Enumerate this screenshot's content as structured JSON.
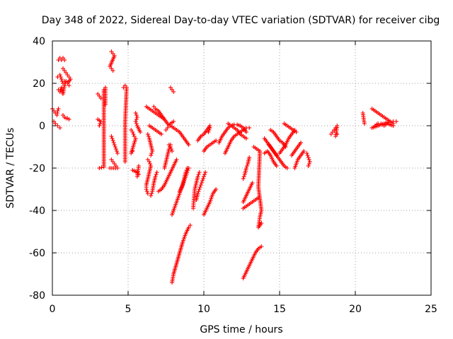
{
  "chart_data": {
    "type": "scatter",
    "title": "Day 348 of 2022, Sidereal Day-to-day VTEC variation (SDTVAR) for receiver cibg",
    "xlabel": "GPS time / hours",
    "ylabel": "SDTVAR / TECUs",
    "xlim": [
      0,
      25
    ],
    "ylim": [
      -80,
      40
    ],
    "xticks": [
      "0",
      "5",
      "10",
      "15",
      "20",
      "25"
    ],
    "yticks": [
      "-80",
      "-60",
      "-40",
      "-20",
      "0",
      "20",
      "40"
    ],
    "grid": true,
    "marker": "+",
    "color": "#ff0000",
    "tracks": [
      [
        [
          0.0,
          8
        ],
        [
          0.1,
          7
        ],
        [
          0.2,
          6
        ],
        [
          0.3,
          5
        ],
        [
          0.35,
          7
        ],
        [
          0.4,
          8
        ]
      ],
      [
        [
          0.1,
          2
        ],
        [
          0.2,
          1
        ],
        [
          0.35,
          0
        ],
        [
          0.5,
          -1
        ]
      ],
      [
        [
          0.4,
          31
        ],
        [
          0.5,
          32
        ],
        [
          0.6,
          31
        ],
        [
          0.7,
          32
        ],
        [
          0.8,
          31
        ]
      ],
      [
        [
          0.35,
          23
        ],
        [
          0.5,
          24
        ],
        [
          0.6,
          22
        ],
        [
          0.7,
          20
        ],
        [
          0.8,
          21
        ]
      ],
      [
        [
          0.4,
          17
        ],
        [
          0.5,
          16
        ],
        [
          0.6,
          18
        ],
        [
          0.7,
          15
        ],
        [
          0.8,
          19
        ],
        [
          0.9,
          21
        ]
      ],
      [
        [
          0.7,
          27
        ],
        [
          0.8,
          26
        ],
        [
          0.9,
          25
        ],
        [
          1.0,
          24
        ],
        [
          1.1,
          23
        ],
        [
          1.2,
          22
        ],
        [
          1.0,
          20
        ],
        [
          1.1,
          19
        ]
      ],
      [
        [
          0.7,
          5
        ],
        [
          0.8,
          4
        ],
        [
          0.9,
          3.5
        ],
        [
          1.0,
          3.5
        ],
        [
          1.1,
          3
        ]
      ],
      [
        [
          3.0,
          15
        ],
        [
          3.1,
          14
        ],
        [
          3.2,
          13
        ]
      ],
      [
        [
          3.0,
          3
        ],
        [
          3.1,
          2.5
        ],
        [
          3.2,
          2
        ],
        [
          3.1,
          0
        ]
      ],
      [
        [
          3.1,
          -20
        ],
        [
          3.4,
          -19.5
        ],
        [
          3.4,
          17
        ],
        [
          3.5,
          18
        ],
        [
          3.5,
          10
        ]
      ],
      [
        [
          3.9,
          35
        ],
        [
          4.0,
          34
        ],
        [
          4.1,
          33
        ],
        [
          3.8,
          28
        ],
        [
          3.9,
          27
        ],
        [
          4.0,
          26
        ]
      ],
      [
        [
          3.9,
          -5
        ],
        [
          4.0,
          -7
        ],
        [
          4.1,
          -9
        ],
        [
          4.2,
          -11
        ],
        [
          4.3,
          -13
        ]
      ],
      [
        [
          3.9,
          -16
        ],
        [
          4.0,
          -17
        ],
        [
          4.1,
          -18
        ],
        [
          4.2,
          -19
        ],
        [
          4.3,
          -20
        ],
        [
          3.8,
          -20
        ]
      ],
      [
        [
          4.7,
          18
        ],
        [
          4.8,
          19
        ],
        [
          4.9,
          18
        ],
        [
          4.8,
          1
        ],
        [
          4.8,
          -5
        ],
        [
          4.8,
          -17
        ]
      ],
      [
        [
          5.2,
          -2
        ],
        [
          5.3,
          -3
        ],
        [
          5.4,
          -5
        ],
        [
          5.5,
          -6
        ],
        [
          5.2,
          -13
        ],
        [
          5.3,
          -12
        ]
      ],
      [
        [
          5.3,
          -21
        ],
        [
          5.6,
          -22
        ],
        [
          5.7,
          -23
        ],
        [
          5.6,
          -24
        ],
        [
          5.7,
          -19
        ]
      ],
      [
        [
          5.5,
          6
        ],
        [
          5.6,
          4
        ],
        [
          5.5,
          2
        ],
        [
          5.6,
          0
        ],
        [
          5.8,
          -3
        ]
      ],
      [
        [
          6.2,
          9
        ],
        [
          6.4,
          8
        ],
        [
          6.6,
          7
        ],
        [
          6.8,
          6
        ],
        [
          7.0,
          5
        ],
        [
          7.2,
          4
        ],
        [
          7.4,
          3
        ]
      ],
      [
        [
          6.4,
          0
        ],
        [
          6.6,
          -1
        ],
        [
          6.8,
          -2
        ],
        [
          7.0,
          -3
        ],
        [
          7.2,
          -4
        ]
      ],
      [
        [
          6.3,
          -4
        ],
        [
          6.4,
          -6
        ],
        [
          6.5,
          -9
        ],
        [
          6.6,
          -12
        ],
        [
          6.5,
          -14
        ]
      ],
      [
        [
          6.3,
          -16
        ],
        [
          6.4,
          -17
        ],
        [
          6.5,
          -19
        ],
        [
          6.4,
          -22
        ],
        [
          6.3,
          -25
        ],
        [
          6.2,
          -28
        ],
        [
          6.2,
          -30
        ],
        [
          6.3,
          -32
        ]
      ],
      [
        [
          6.9,
          -22
        ],
        [
          6.8,
          -24
        ],
        [
          6.7,
          -27
        ],
        [
          6.6,
          -31
        ],
        [
          6.5,
          -33
        ]
      ],
      [
        [
          6.7,
          9
        ],
        [
          6.8,
          8
        ],
        [
          7.0,
          7
        ],
        [
          7.2,
          5
        ],
        [
          7.4,
          3
        ],
        [
          7.6,
          1
        ],
        [
          7.8,
          0
        ],
        [
          8.0,
          -1
        ],
        [
          8.2,
          -2
        ],
        [
          8.4,
          -3
        ],
        [
          8.6,
          -5
        ],
        [
          8.8,
          -7
        ],
        [
          9.0,
          -9
        ]
      ],
      [
        [
          7.8,
          18
        ],
        [
          7.9,
          17
        ],
        [
          8.0,
          16
        ]
      ],
      [
        [
          7.5,
          -2
        ],
        [
          7.6,
          -1
        ],
        [
          7.7,
          0
        ],
        [
          7.8,
          1
        ],
        [
          8.0,
          2
        ]
      ],
      [
        [
          7.7,
          -9
        ],
        [
          7.8,
          -10
        ],
        [
          7.9,
          -12
        ]
      ],
      [
        [
          7.4,
          -20
        ],
        [
          7.5,
          -17
        ],
        [
          7.6,
          -14
        ],
        [
          7.7,
          -11
        ],
        [
          7.8,
          -9
        ]
      ],
      [
        [
          7.0,
          -31
        ],
        [
          7.2,
          -30
        ],
        [
          7.4,
          -28
        ],
        [
          7.6,
          -25
        ],
        [
          7.8,
          -22
        ],
        [
          8.0,
          -19
        ],
        [
          8.2,
          -16
        ]
      ],
      [
        [
          7.9,
          -42
        ],
        [
          8.1,
          -38
        ],
        [
          8.3,
          -34
        ],
        [
          8.5,
          -30
        ],
        [
          8.7,
          -26
        ],
        [
          8.9,
          -22
        ],
        [
          9.0,
          -20
        ]
      ],
      [
        [
          7.9,
          -74
        ],
        [
          8.0,
          -70
        ],
        [
          8.2,
          -65
        ],
        [
          8.4,
          -60
        ],
        [
          8.6,
          -55
        ],
        [
          8.8,
          -51
        ],
        [
          9.0,
          -48
        ],
        [
          9.1,
          -47
        ]
      ],
      [
        [
          8.4,
          -31
        ],
        [
          8.6,
          -28
        ],
        [
          8.7,
          -25
        ],
        [
          8.8,
          -22
        ],
        [
          8.9,
          -20
        ]
      ],
      [
        [
          9.3,
          -39
        ],
        [
          9.35,
          -34
        ],
        [
          9.4,
          -30
        ],
        [
          9.5,
          -27
        ],
        [
          9.6,
          -24
        ],
        [
          9.7,
          -22
        ]
      ],
      [
        [
          9.5,
          -35
        ],
        [
          9.6,
          -32
        ],
        [
          9.7,
          -30
        ],
        [
          9.8,
          -28
        ],
        [
          9.9,
          -26
        ],
        [
          10.0,
          -24
        ],
        [
          10.1,
          -22
        ]
      ],
      [
        [
          10.0,
          -42
        ],
        [
          10.2,
          -39
        ],
        [
          10.4,
          -36
        ],
        [
          10.6,
          -32
        ],
        [
          10.8,
          -30
        ]
      ],
      [
        [
          9.6,
          -7
        ],
        [
          9.8,
          -5
        ],
        [
          10.0,
          -4
        ],
        [
          10.2,
          -2
        ],
        [
          10.4,
          0
        ]
      ],
      [
        [
          10.0,
          -12
        ],
        [
          10.2,
          -10
        ],
        [
          10.4,
          -9
        ],
        [
          10.6,
          -8
        ],
        [
          10.8,
          -7
        ]
      ],
      [
        [
          10.3,
          -3
        ],
        [
          10.4,
          -1
        ]
      ],
      [
        [
          11.0,
          -8
        ],
        [
          11.2,
          -5
        ],
        [
          11.4,
          -3
        ],
        [
          11.6,
          -1
        ],
        [
          11.8,
          0
        ],
        [
          12.0,
          0.5
        ],
        [
          12.2,
          0.5
        ],
        [
          12.4,
          0
        ],
        [
          12.6,
          -1
        ],
        [
          12.8,
          -3
        ]
      ],
      [
        [
          11.4,
          -13
        ],
        [
          11.6,
          -10
        ],
        [
          11.8,
          -7
        ],
        [
          12.0,
          -5
        ],
        [
          12.2,
          -4
        ],
        [
          12.4,
          -3
        ],
        [
          12.6,
          -2
        ],
        [
          12.8,
          -1
        ],
        [
          13.0,
          -1
        ]
      ],
      [
        [
          11.6,
          1
        ],
        [
          11.8,
          0
        ],
        [
          12.0,
          -1
        ],
        [
          12.2,
          -2
        ],
        [
          12.4,
          -4
        ],
        [
          12.6,
          -5
        ],
        [
          12.8,
          -6
        ]
      ],
      [
        [
          12.6,
          -25
        ],
        [
          12.7,
          -23
        ],
        [
          12.8,
          -20
        ],
        [
          12.9,
          -18
        ],
        [
          13.0,
          -15
        ]
      ],
      [
        [
          12.6,
          -36
        ],
        [
          12.8,
          -33
        ],
        [
          13.0,
          -30
        ],
        [
          13.2,
          -27
        ]
      ],
      [
        [
          12.6,
          -39
        ],
        [
          12.8,
          -38
        ],
        [
          13.0,
          -37
        ],
        [
          13.2,
          -36
        ],
        [
          13.4,
          -35
        ],
        [
          13.6,
          -34
        ]
      ],
      [
        [
          12.6,
          -72
        ],
        [
          12.8,
          -69
        ],
        [
          13.0,
          -66
        ],
        [
          13.2,
          -63
        ],
        [
          13.4,
          -60
        ],
        [
          13.6,
          -58
        ],
        [
          13.8,
          -57
        ]
      ],
      [
        [
          13.3,
          -10
        ],
        [
          13.5,
          -11
        ],
        [
          13.7,
          -12
        ],
        [
          13.6,
          -29
        ],
        [
          13.8,
          -40
        ],
        [
          13.7,
          -43
        ],
        [
          13.6,
          -48
        ],
        [
          13.8,
          -46
        ]
      ],
      [
        [
          14.0,
          -6
        ],
        [
          14.2,
          -8
        ],
        [
          14.4,
          -10
        ],
        [
          14.6,
          -12
        ],
        [
          14.8,
          -14
        ]
      ],
      [
        [
          14.0,
          -13
        ],
        [
          14.2,
          -12
        ],
        [
          14.4,
          -14
        ],
        [
          14.6,
          -17
        ],
        [
          14.8,
          -19
        ]
      ],
      [
        [
          14.3,
          -9
        ],
        [
          14.5,
          -11
        ],
        [
          14.7,
          -13
        ],
        [
          14.9,
          -15
        ],
        [
          15.1,
          -17
        ],
        [
          15.3,
          -19
        ],
        [
          15.5,
          -20
        ]
      ],
      [
        [
          14.4,
          -2
        ],
        [
          14.6,
          -3
        ],
        [
          14.8,
          -5
        ],
        [
          15.0,
          -7
        ],
        [
          15.2,
          -8
        ],
        [
          15.4,
          -10
        ]
      ],
      [
        [
          15.0,
          -13
        ],
        [
          15.2,
          -11
        ],
        [
          15.4,
          -9
        ],
        [
          15.6,
          -6
        ],
        [
          15.8,
          -4
        ],
        [
          16.0,
          -2
        ]
      ],
      [
        [
          15.3,
          1
        ],
        [
          15.5,
          0
        ],
        [
          15.7,
          -1
        ],
        [
          15.9,
          -2
        ],
        [
          16.1,
          -3
        ]
      ],
      [
        [
          15.8,
          -14
        ],
        [
          16.0,
          -12
        ],
        [
          16.2,
          -10
        ],
        [
          16.4,
          -8
        ]
      ],
      [
        [
          16.0,
          -20
        ],
        [
          16.2,
          -16
        ],
        [
          16.4,
          -14
        ],
        [
          16.6,
          -12
        ]
      ],
      [
        [
          16.8,
          -13
        ],
        [
          16.9,
          -15
        ],
        [
          17.0,
          -17
        ],
        [
          16.9,
          -19
        ]
      ],
      [
        [
          18.4,
          -4
        ],
        [
          18.5,
          -3
        ],
        [
          18.6,
          -2
        ],
        [
          18.7,
          -1
        ],
        [
          18.8,
          0
        ],
        [
          18.7,
          -5
        ],
        [
          18.8,
          -4
        ]
      ],
      [
        [
          20.5,
          6
        ],
        [
          20.6,
          1
        ]
      ],
      [
        [
          21.1,
          8
        ],
        [
          21.3,
          7
        ],
        [
          21.5,
          6
        ],
        [
          21.7,
          5
        ],
        [
          21.9,
          4
        ],
        [
          22.1,
          3
        ],
        [
          22.3,
          2
        ],
        [
          22.5,
          1
        ]
      ],
      [
        [
          21.1,
          -1
        ],
        [
          21.3,
          -0.5
        ],
        [
          21.5,
          0
        ],
        [
          21.7,
          0.5
        ],
        [
          21.9,
          1
        ],
        [
          22.1,
          1.5
        ],
        [
          22.3,
          2
        ],
        [
          22.5,
          2
        ],
        [
          22.7,
          2
        ]
      ],
      [
        [
          21.3,
          0
        ],
        [
          21.5,
          1
        ],
        [
          21.7,
          1
        ],
        [
          21.9,
          0
        ],
        [
          22.1,
          1
        ],
        [
          22.3,
          0.5
        ],
        [
          22.5,
          0
        ]
      ]
    ]
  }
}
